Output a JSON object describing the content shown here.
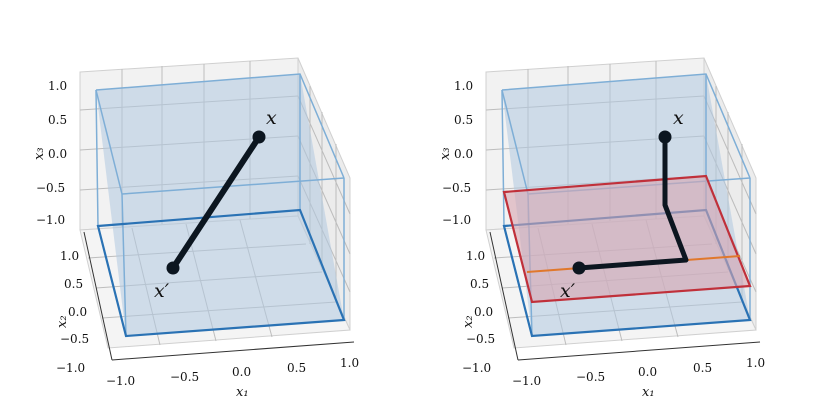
{
  "colors": {
    "box_fill": "#b0c8e0",
    "box_edge": "#4a90c8",
    "bottom_edge": "#2a72b4",
    "plane_fill": "#d7a5b0",
    "plane_edge": "#c0303a",
    "segment_projection": "#e0782c",
    "path": "#0c1620",
    "grid": "#bdbdbd",
    "pane": "#f2f2f2"
  },
  "panels": [
    {
      "point_top": "x",
      "point_bottom": "x′",
      "axis_x_label": "x₁",
      "axis_y_label": "x₂",
      "axis_z_label": "x₃",
      "x_ticks": [
        "−1.0",
        "−0.5",
        "0.0",
        "0.5",
        "1.0"
      ],
      "y_ticks": [
        "−1.0",
        "−0.5",
        "0.0",
        "0.5",
        "1.0"
      ],
      "z_ticks": [
        "1.0",
        "0.5",
        "0.0",
        "−0.5",
        "−1.0"
      ],
      "path_kind": "straight"
    },
    {
      "point_top": "x",
      "point_bottom": "x′",
      "axis_x_label": "x₁",
      "axis_y_label": "x₂",
      "axis_z_label": "x₃",
      "x_ticks": [
        "−1.0",
        "−0.5",
        "0.0",
        "0.5",
        "1.0"
      ],
      "y_ticks": [
        "−1.0",
        "−0.5",
        "0.0",
        "0.5",
        "1.0"
      ],
      "z_ticks": [
        "1.0",
        "0.5",
        "0.0",
        "−0.5",
        "−1.0"
      ],
      "path_kind": "projected"
    }
  ]
}
